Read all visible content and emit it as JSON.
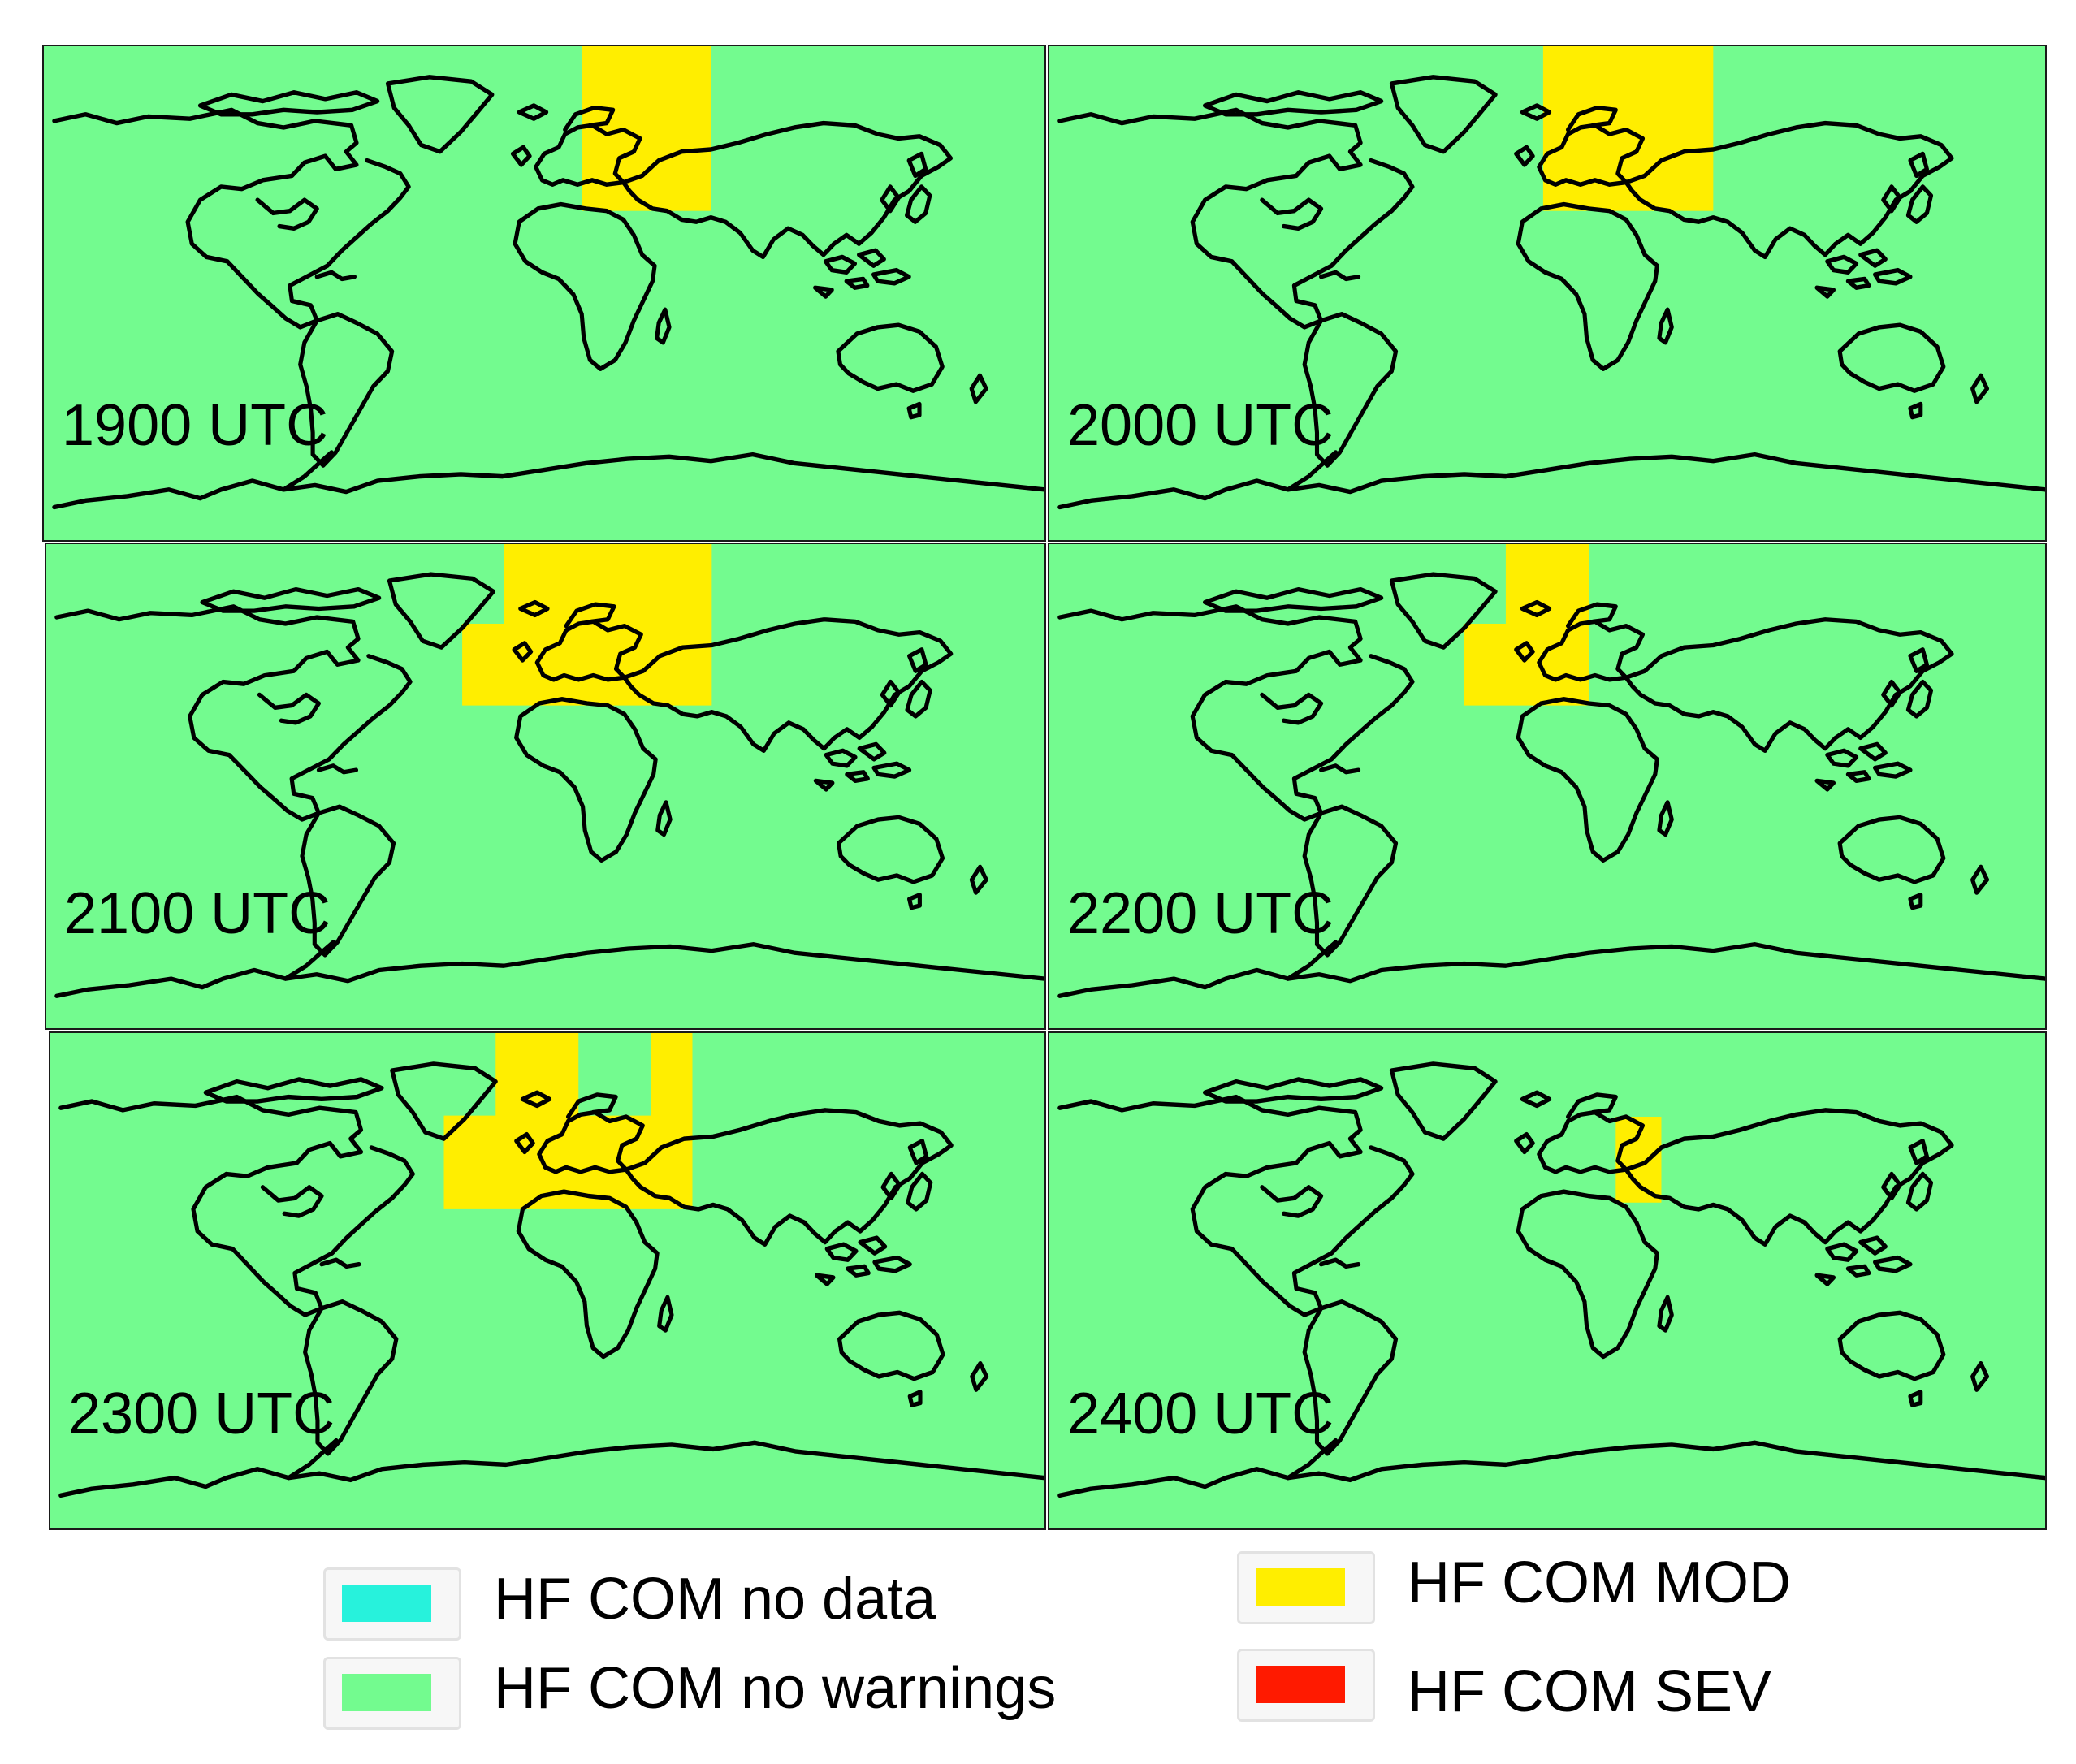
{
  "colors": {
    "no_data": "#27f2dc",
    "no_warnings": "#73fb8f",
    "mod": "#ffee00",
    "sev": "#ff1a00",
    "coast": "#000000"
  },
  "panels": [
    {
      "label": "1900 UTC"
    },
    {
      "label": "2000 UTC"
    },
    {
      "label": "2100 UTC"
    },
    {
      "label": "2200 UTC"
    },
    {
      "label": "2300 UTC"
    },
    {
      "label": "2400 UTC"
    }
  ],
  "legend": {
    "no_data": "HF COM no data",
    "no_warnings": "HF COM no warnings",
    "mod": "HF COM MOD",
    "sev": "HF COM SEV"
  }
}
